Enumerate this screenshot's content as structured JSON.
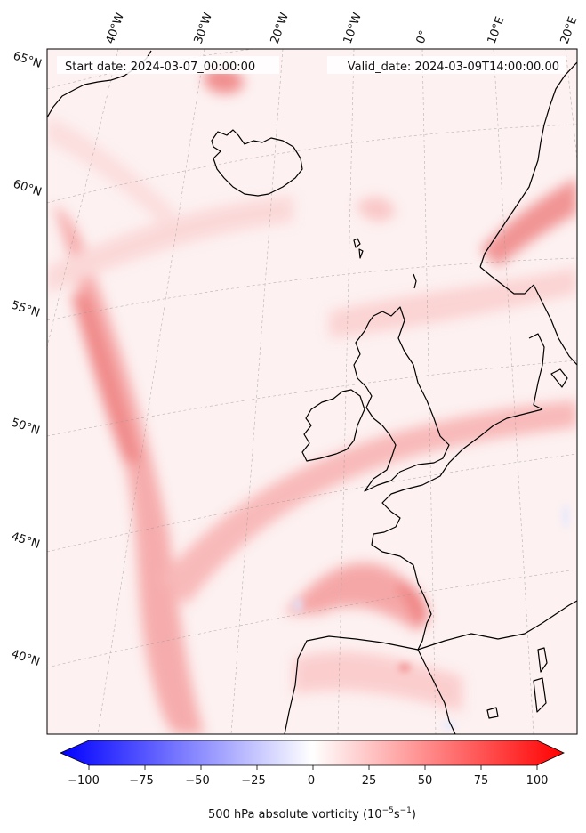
{
  "header": {
    "start_date": "Start date: 2024-03-07_00:00:00",
    "valid_date": "Valid_date: 2024-03-09T14:00:00.00"
  },
  "longitude_labels": [
    "40°W",
    "30°W",
    "20°W",
    "10°W",
    "0°",
    "10°E",
    "20°E"
  ],
  "latitude_labels": [
    "65°N",
    "60°N",
    "55°N",
    "50°N",
    "45°N",
    "40°N"
  ],
  "colorbar": {
    "ticks": [
      "−100",
      "−75",
      "−50",
      "−25",
      "0",
      "25",
      "50",
      "75",
      "100"
    ],
    "label_main": "500 hPa absolute vorticity (10",
    "label_exp1": "−5",
    "label_mid": "s",
    "label_exp2": "−1",
    "label_end": ")",
    "min": -100,
    "max": 100,
    "colors": {
      "low": "#0000ff",
      "mid": "#ffffff",
      "high": "#ff0000"
    }
  },
  "colors": {
    "coastline": "#000000",
    "grid": "#999999"
  }
}
